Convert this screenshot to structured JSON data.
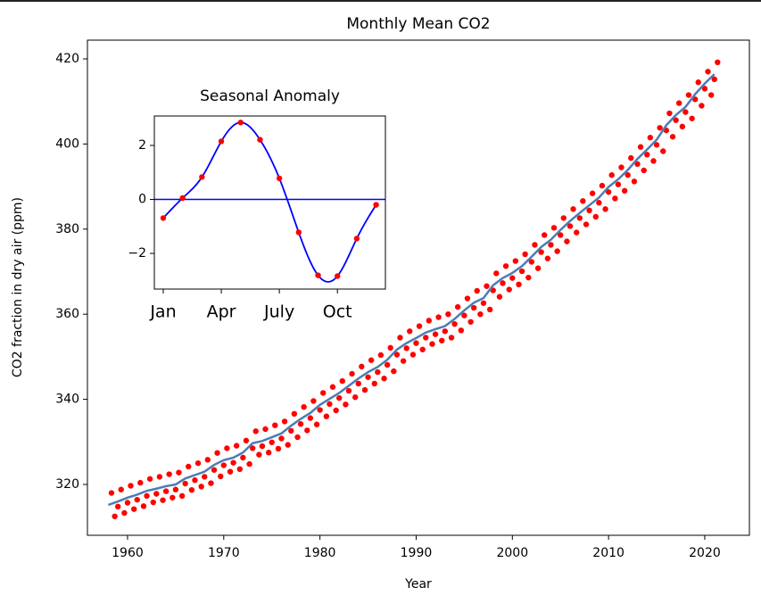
{
  "chart_data": [
    {
      "type": "line",
      "title": "Monthly Mean CO2",
      "xlabel": "Year",
      "ylabel": "CO2 fraction in dry air (ppm)",
      "xlim": [
        1955.83,
        2024.64
      ],
      "ylim": [
        308.05,
        424.4
      ],
      "xticks": [
        1960,
        1970,
        1980,
        1990,
        2000,
        2010,
        2020
      ],
      "yticks": [
        320,
        340,
        360,
        380,
        400,
        420
      ],
      "series": [
        {
          "style": "dots",
          "color": "#ff0000",
          "x": [
            1958.33,
            1958.67,
            1959,
            1959.33,
            1959.67,
            1960,
            1960.33,
            1960.67,
            1961,
            1961.33,
            1961.67,
            1962,
            1962.33,
            1962.67,
            1963,
            1963.33,
            1963.67,
            1964,
            1964.33,
            1964.67,
            1965,
            1965.33,
            1965.67,
            1966,
            1966.33,
            1966.67,
            1967,
            1967.33,
            1967.67,
            1968,
            1968.33,
            1968.67,
            1969,
            1969.33,
            1969.67,
            1970,
            1970.33,
            1970.67,
            1971,
            1971.33,
            1971.67,
            1972,
            1972.33,
            1972.67,
            1973,
            1973.33,
            1973.67,
            1974,
            1974.33,
            1974.67,
            1975,
            1975.33,
            1975.67,
            1976,
            1976.33,
            1976.67,
            1977,
            1977.33,
            1977.67,
            1978,
            1978.33,
            1978.67,
            1979,
            1979.33,
            1979.67,
            1980,
            1980.33,
            1980.67,
            1981,
            1981.33,
            1981.67,
            1982,
            1982.33,
            1982.67,
            1983,
            1983.33,
            1983.67,
            1984,
            1984.33,
            1984.67,
            1985,
            1985.33,
            1985.67,
            1986,
            1986.33,
            1986.67,
            1987,
            1987.33,
            1987.67,
            1988,
            1988.33,
            1988.67,
            1989,
            1989.33,
            1989.67,
            1990,
            1990.33,
            1990.67,
            1991,
            1991.33,
            1991.67,
            1992,
            1992.33,
            1992.67,
            1993,
            1993.33,
            1993.67,
            1994,
            1994.33,
            1994.67,
            1995,
            1995.33,
            1995.67,
            1996,
            1996.33,
            1996.67,
            1997,
            1997.33,
            1997.67,
            1998,
            1998.33,
            1998.67,
            1999,
            1999.33,
            1999.67,
            2000,
            2000.33,
            2000.67,
            2001,
            2001.33,
            2001.67,
            2002,
            2002.33,
            2002.67,
            2003,
            2003.33,
            2003.67,
            2004,
            2004.33,
            2004.67,
            2005,
            2005.33,
            2005.67,
            2006,
            2006.33,
            2006.67,
            2007,
            2007.33,
            2007.67,
            2008,
            2008.33,
            2008.67,
            2009,
            2009.33,
            2009.67,
            2010,
            2010.33,
            2010.67,
            2011,
            2011.33,
            2011.67,
            2012,
            2012.33,
            2012.67,
            2013,
            2013.33,
            2013.67,
            2014,
            2014.33,
            2014.67,
            2015,
            2015.33,
            2015.67,
            2016,
            2016.33,
            2016.67,
            2017,
            2017.33,
            2017.67,
            2018,
            2018.33,
            2018.67,
            2019,
            2019.33,
            2019.67,
            2020,
            2020.33,
            2020.67,
            2021,
            2021.33
          ],
          "values": [
            318.0,
            312.5,
            314.8,
            318.8,
            313.3,
            315.7,
            319.7,
            314.2,
            316.4,
            320.4,
            314.9,
            317.3,
            321.3,
            315.8,
            317.8,
            321.8,
            316.3,
            318.4,
            322.4,
            316.9,
            318.8,
            322.8,
            317.3,
            320.2,
            324.2,
            318.7,
            321.0,
            325.0,
            319.5,
            321.8,
            325.8,
            320.3,
            323.4,
            327.4,
            321.9,
            324.5,
            328.5,
            323.0,
            325.1,
            329.1,
            323.6,
            326.3,
            330.3,
            324.8,
            328.5,
            332.5,
            327.0,
            329.0,
            333.0,
            327.5,
            329.9,
            333.9,
            328.4,
            330.8,
            334.8,
            329.3,
            332.6,
            336.6,
            331.1,
            334.2,
            338.2,
            332.7,
            335.6,
            339.6,
            334.1,
            337.5,
            341.5,
            336.0,
            338.9,
            342.9,
            337.4,
            340.3,
            344.3,
            338.8,
            342.0,
            346.0,
            340.5,
            343.7,
            347.7,
            342.2,
            345.2,
            349.2,
            343.7,
            346.4,
            350.4,
            344.9,
            348.1,
            352.1,
            346.6,
            350.5,
            354.5,
            349.0,
            352.0,
            356.0,
            350.5,
            353.2,
            357.2,
            351.7,
            354.5,
            358.5,
            353.0,
            355.3,
            359.3,
            353.8,
            356.0,
            360.0,
            354.5,
            357.7,
            361.7,
            356.2,
            359.7,
            363.7,
            358.2,
            361.5,
            365.5,
            360.0,
            362.6,
            366.6,
            361.1,
            365.6,
            369.6,
            364.1,
            367.3,
            371.3,
            365.8,
            368.5,
            372.5,
            367.0,
            370.1,
            374.1,
            368.6,
            372.3,
            376.3,
            370.8,
            374.6,
            378.6,
            373.1,
            376.3,
            380.3,
            374.8,
            378.6,
            382.6,
            377.1,
            380.7,
            384.7,
            379.2,
            382.6,
            386.6,
            381.1,
            384.4,
            388.4,
            382.9,
            386.2,
            390.2,
            384.7,
            388.7,
            392.7,
            387.2,
            390.5,
            394.5,
            389.0,
            392.7,
            396.7,
            391.2,
            395.3,
            399.3,
            393.8,
            397.5,
            401.5,
            396.0,
            399.8,
            403.8,
            398.3,
            403.2,
            407.2,
            401.7,
            405.6,
            409.6,
            404.1,
            407.5,
            411.5,
            406.0,
            410.5,
            414.5,
            409.0,
            413.0,
            417.0,
            411.5,
            415.2,
            419.2
          ]
        },
        {
          "style": "line",
          "color": "#4a7db5",
          "x": [
            1958,
            1959,
            1960,
            1961,
            1962,
            1963,
            1964,
            1965,
            1966,
            1967,
            1968,
            1969,
            1970,
            1971,
            1972,
            1973,
            1974,
            1975,
            1976,
            1977,
            1978,
            1979,
            1980,
            1981,
            1982,
            1983,
            1984,
            1985,
            1986,
            1987,
            1988,
            1989,
            1990,
            1991,
            1992,
            1993,
            1994,
            1995,
            1996,
            1997,
            1998,
            1999,
            2000,
            2001,
            2002,
            2003,
            2004,
            2005,
            2006,
            2007,
            2008,
            2009,
            2010,
            2011,
            2012,
            2013,
            2014,
            2015,
            2016,
            2017,
            2018,
            2019,
            2020,
            2021
          ],
          "values": [
            315.2,
            316.0,
            316.9,
            317.6,
            318.5,
            319.0,
            319.6,
            320.0,
            321.4,
            322.2,
            323.0,
            324.6,
            325.7,
            326.3,
            327.5,
            329.7,
            330.2,
            331.1,
            332.0,
            333.8,
            335.4,
            336.8,
            338.7,
            340.1,
            341.5,
            343.2,
            344.9,
            346.4,
            347.6,
            349.3,
            351.7,
            353.2,
            354.4,
            355.7,
            356.5,
            357.2,
            358.9,
            360.9,
            362.7,
            363.8,
            366.8,
            368.5,
            369.7,
            371.3,
            373.5,
            375.8,
            377.5,
            379.8,
            381.9,
            383.8,
            385.6,
            387.4,
            389.9,
            391.7,
            393.9,
            396.5,
            398.7,
            401.0,
            404.4,
            406.8,
            408.7,
            411.7,
            414.2,
            416.4
          ]
        }
      ]
    },
    {
      "type": "line",
      "title": "Seasonal Anomaly",
      "xlim": [
        0.54,
        12.48
      ],
      "ylim": [
        -3.32,
        3.09
      ],
      "xticks": [
        {
          "value": 1,
          "label": "Jan"
        },
        {
          "value": 4,
          "label": "Apr"
        },
        {
          "value": 7,
          "label": "July"
        },
        {
          "value": 10,
          "label": "Oct"
        }
      ],
      "yticks": [
        {
          "value": -2,
          "label": "−2"
        },
        0,
        2
      ],
      "hline": 0,
      "hline_color": "#0000ff",
      "smooth": true,
      "line_color": "#0000ff",
      "dot_color": "#ff0000",
      "x": [
        1,
        2,
        3,
        4,
        5,
        6,
        7,
        8,
        9,
        10,
        11,
        12
      ],
      "values": [
        -0.69,
        0.05,
        0.83,
        2.15,
        2.85,
        2.21,
        0.78,
        -1.22,
        -2.81,
        -2.84,
        -1.45,
        -0.2
      ]
    }
  ]
}
